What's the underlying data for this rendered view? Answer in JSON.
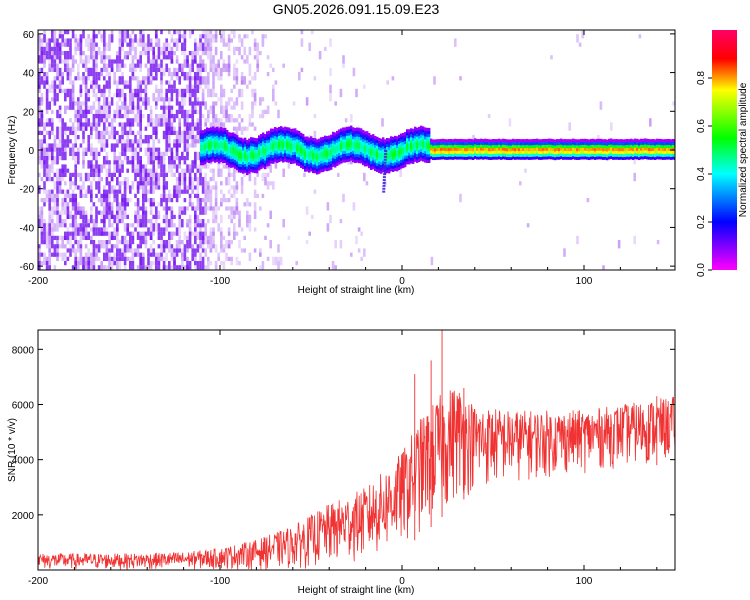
{
  "title": "GN05.2026.091.15.09.E23",
  "chart_data": [
    {
      "type": "heatmap",
      "xlabel": "Height of straight line (km)",
      "ylabel": "Frequency (Hz)",
      "xlim": [
        -200,
        150
      ],
      "ylim": [
        -62,
        62
      ],
      "xticks": [
        -200,
        -100,
        0,
        100
      ],
      "yticks": [
        -60,
        -40,
        -20,
        0,
        20,
        40,
        60
      ],
      "colorbar": {
        "label": "Normalized spectral amplitude",
        "range": [
          0,
          1
        ],
        "ticks": [
          0.0,
          0.2,
          0.4,
          0.6,
          0.8
        ],
        "colormap": "hsv-reversed (magenta-blue-cyan-green-yellow-red)"
      },
      "features": {
        "noise_region_x": [
          -200,
          -70
        ],
        "ridge_center_hz": 0,
        "ridge_start_km": -112,
        "perturbation_x_km": -9,
        "perturbation_min_hz": -22,
        "peak_amplitude_region_x": [
          10,
          150
        ]
      }
    },
    {
      "type": "line",
      "xlabel": "Height of straight line (km)",
      "ylabel": "SNR (10 * v/v)",
      "xlim": [
        -200,
        150
      ],
      "ylim": [
        0,
        8700
      ],
      "xticks": [
        -200,
        -100,
        0,
        100
      ],
      "yticks": [
        2000,
        4000,
        6000,
        8000
      ],
      "series_color": "#f03232",
      "envelope": {
        "x": [
          -200,
          -150,
          -120,
          -100,
          -80,
          -60,
          -40,
          -20,
          -10,
          0,
          10,
          20,
          30,
          40,
          60,
          80,
          100,
          120,
          140,
          150
        ],
        "low": [
          0,
          0,
          0,
          0,
          0,
          0,
          100,
          300,
          500,
          800,
          1200,
          1800,
          2400,
          2800,
          3100,
          3300,
          3500,
          3700,
          3800,
          3900
        ],
        "high": [
          600,
          600,
          650,
          800,
          1100,
          1600,
          2400,
          3000,
          3600,
          4300,
          5500,
          6300,
          6800,
          6000,
          5800,
          5800,
          5800,
          6000,
          6200,
          6300
        ]
      },
      "spikes": [
        {
          "x": 7,
          "y": 7100
        },
        {
          "x": 16,
          "y": 7600
        },
        {
          "x": 22,
          "y": 8700
        },
        {
          "x": 34,
          "y": 6600
        },
        {
          "x": 140,
          "y": 6300
        }
      ]
    }
  ]
}
